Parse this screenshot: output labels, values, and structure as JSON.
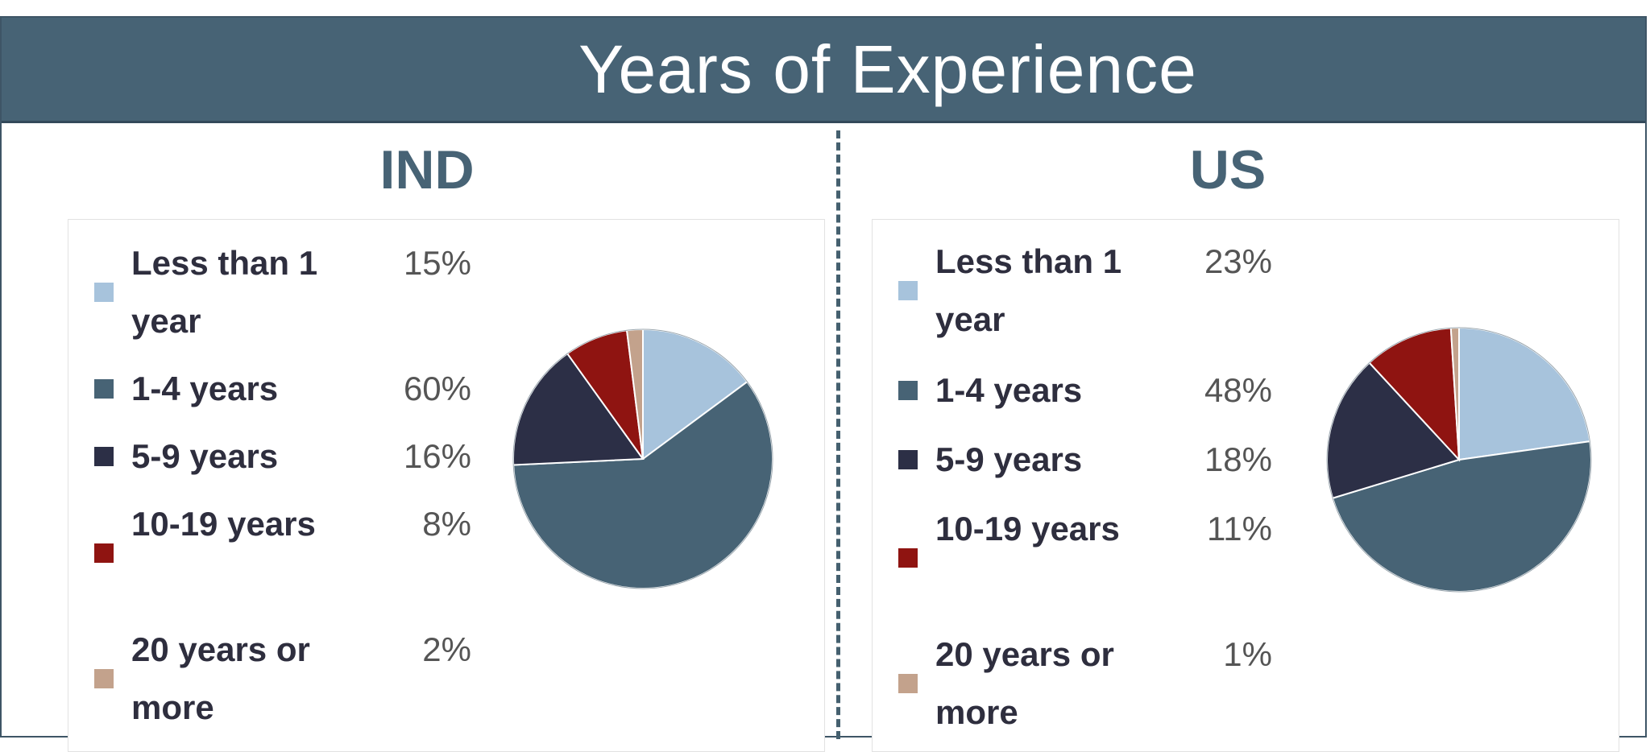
{
  "title": "Years of Experience",
  "colors": [
    "#a7c3dc",
    "#476375",
    "#2c2f46",
    "#8f1411",
    "#c3a28c"
  ],
  "chart_data": [
    {
      "type": "pie",
      "title": "IND",
      "categories": [
        "Less than 1 year",
        "1-4 years",
        "5-9 years",
        "10-19 years",
        "20 years or more"
      ],
      "values": [
        15,
        60,
        16,
        8,
        2
      ],
      "labels": [
        "15%",
        "60%",
        "16%",
        "8%",
        "2%"
      ],
      "legend_position": "left"
    },
    {
      "type": "pie",
      "title": "US",
      "categories": [
        "Less than 1 year",
        "1-4 years",
        "5-9 years",
        "10-19 years",
        "20 years or more"
      ],
      "values": [
        23,
        48,
        18,
        11,
        1
      ],
      "labels": [
        "23%",
        "48%",
        "18%",
        "11%",
        "1%"
      ],
      "legend_position": "left"
    }
  ]
}
